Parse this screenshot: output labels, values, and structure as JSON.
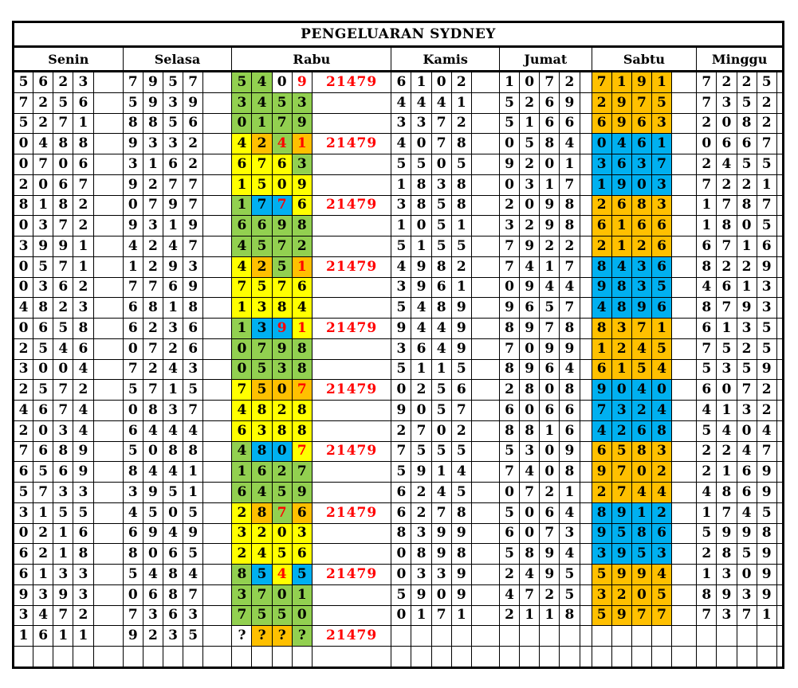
{
  "title": "PENGELUARAN SYDNEY",
  "days": [
    "Senin",
    "Selasa",
    "Rabu",
    "Kamis",
    "Jumat",
    "Sabtu",
    "Minggu"
  ],
  "colors": {
    "green": "#92D050",
    "yellow": "#FFFF00",
    "orange": "#FFC000",
    "blue": "#00B0F0",
    "white": "#FFFFFF",
    "red": "#FF0000",
    "black": "#000000"
  },
  "rows": [
    {
      "senin": "5623",
      "selasa": "7957",
      "rabu": {
        "digits": [
          "5",
          "4",
          "0",
          "9"
        ],
        "bg": [
          "green",
          "green",
          "white",
          "white"
        ],
        "red": [
          false,
          false,
          false,
          true
        ]
      },
      "result": "21479",
      "kamis": "6102",
      "jumat": "1072",
      "sabtu": "7191",
      "sabtu_bg": "orange",
      "minggu": "7225"
    },
    {
      "senin": "7256",
      "selasa": "5939",
      "rabu": {
        "digits": [
          "3",
          "4",
          "5",
          "3"
        ],
        "bg": [
          "green",
          "green",
          "green",
          "green"
        ],
        "red": [
          false,
          false,
          false,
          false
        ]
      },
      "result": "",
      "kamis": "4441",
      "jumat": "5269",
      "sabtu": "2975",
      "sabtu_bg": "orange",
      "minggu": "7352"
    },
    {
      "senin": "5271",
      "selasa": "8856",
      "rabu": {
        "digits": [
          "0",
          "1",
          "7",
          "9"
        ],
        "bg": [
          "green",
          "green",
          "green",
          "green"
        ],
        "red": [
          false,
          false,
          false,
          false
        ]
      },
      "result": "",
      "kamis": "3372",
      "jumat": "5166",
      "sabtu": "6963",
      "sabtu_bg": "orange",
      "minggu": "2082"
    },
    {
      "senin": "0488",
      "selasa": "9332",
      "rabu": {
        "digits": [
          "4",
          "2",
          "4",
          "1"
        ],
        "bg": [
          "yellow",
          "orange",
          "green",
          "orange"
        ],
        "red": [
          false,
          false,
          true,
          true
        ]
      },
      "result": "21479",
      "kamis": "4078",
      "jumat": "0584",
      "sabtu": "0461",
      "sabtu_bg": "blue",
      "minggu": "0667"
    },
    {
      "senin": "0706",
      "selasa": "3162",
      "rabu": {
        "digits": [
          "6",
          "7",
          "6",
          "3"
        ],
        "bg": [
          "yellow",
          "yellow",
          "yellow",
          "green"
        ],
        "red": [
          false,
          false,
          false,
          false
        ]
      },
      "result": "",
      "kamis": "5505",
      "jumat": "9201",
      "sabtu": "3637",
      "sabtu_bg": "blue",
      "minggu": "2455"
    },
    {
      "senin": "2067",
      "selasa": "9277",
      "rabu": {
        "digits": [
          "1",
          "5",
          "0",
          "9"
        ],
        "bg": [
          "yellow",
          "yellow",
          "yellow",
          "yellow"
        ],
        "red": [
          false,
          false,
          false,
          false
        ]
      },
      "result": "",
      "kamis": "1838",
      "jumat": "0317",
      "sabtu": "1903",
      "sabtu_bg": "blue",
      "minggu": "7221"
    },
    {
      "senin": "8182",
      "selasa": "0797",
      "rabu": {
        "digits": [
          "1",
          "7",
          "7",
          "6"
        ],
        "bg": [
          "green",
          "blue",
          "blue",
          "yellow"
        ],
        "red": [
          false,
          false,
          true,
          false
        ]
      },
      "result": "21479",
      "kamis": "3858",
      "jumat": "2098",
      "sabtu": "2683",
      "sabtu_bg": "orange",
      "minggu": "1787"
    },
    {
      "senin": "0372",
      "selasa": "9319",
      "rabu": {
        "digits": [
          "6",
          "6",
          "9",
          "8"
        ],
        "bg": [
          "green",
          "green",
          "green",
          "green"
        ],
        "red": [
          false,
          false,
          false,
          false
        ]
      },
      "result": "",
      "kamis": "1051",
      "jumat": "3298",
      "sabtu": "6166",
      "sabtu_bg": "orange",
      "minggu": "1805"
    },
    {
      "senin": "3991",
      "selasa": "4247",
      "rabu": {
        "digits": [
          "4",
          "5",
          "7",
          "2"
        ],
        "bg": [
          "green",
          "green",
          "green",
          "green"
        ],
        "red": [
          false,
          false,
          false,
          false
        ]
      },
      "result": "",
      "kamis": "5155",
      "jumat": "7922",
      "sabtu": "2126",
      "sabtu_bg": "orange",
      "minggu": "6716"
    },
    {
      "senin": "0571",
      "selasa": "1293",
      "rabu": {
        "digits": [
          "4",
          "2",
          "5",
          "1"
        ],
        "bg": [
          "yellow",
          "orange",
          "green",
          "orange"
        ],
        "red": [
          false,
          false,
          false,
          true
        ]
      },
      "result": "21479",
      "kamis": "4982",
      "jumat": "7417",
      "sabtu": "8436",
      "sabtu_bg": "blue",
      "minggu": "8229"
    },
    {
      "senin": "0362",
      "selasa": "7769",
      "rabu": {
        "digits": [
          "7",
          "5",
          "7",
          "6"
        ],
        "bg": [
          "yellow",
          "yellow",
          "yellow",
          "yellow"
        ],
        "red": [
          false,
          false,
          false,
          false
        ]
      },
      "result": "",
      "kamis": "3961",
      "jumat": "0944",
      "sabtu": "9835",
      "sabtu_bg": "blue",
      "minggu": "4613"
    },
    {
      "senin": "4823",
      "selasa": "6818",
      "rabu": {
        "digits": [
          "1",
          "3",
          "8",
          "4"
        ],
        "bg": [
          "yellow",
          "yellow",
          "yellow",
          "yellow"
        ],
        "red": [
          false,
          false,
          false,
          false
        ]
      },
      "result": "",
      "kamis": "5489",
      "jumat": "9657",
      "sabtu": "4896",
      "sabtu_bg": "blue",
      "minggu": "8793"
    },
    {
      "senin": "0658",
      "selasa": "6236",
      "rabu": {
        "digits": [
          "1",
          "3",
          "9",
          "1"
        ],
        "bg": [
          "green",
          "blue",
          "blue",
          "yellow"
        ],
        "red": [
          false,
          false,
          true,
          true
        ]
      },
      "result": "21479",
      "kamis": "9449",
      "jumat": "8978",
      "sabtu": "8371",
      "sabtu_bg": "orange",
      "minggu": "6135"
    },
    {
      "senin": "2546",
      "selasa": "0726",
      "rabu": {
        "digits": [
          "0",
          "7",
          "9",
          "8"
        ],
        "bg": [
          "green",
          "green",
          "green",
          "green"
        ],
        "red": [
          false,
          false,
          false,
          false
        ]
      },
      "result": "",
      "kamis": "3649",
      "jumat": "7099",
      "sabtu": "1245",
      "sabtu_bg": "orange",
      "minggu": "7525"
    },
    {
      "senin": "3004",
      "selasa": "7243",
      "rabu": {
        "digits": [
          "0",
          "5",
          "3",
          "8"
        ],
        "bg": [
          "green",
          "green",
          "green",
          "green"
        ],
        "red": [
          false,
          false,
          false,
          false
        ]
      },
      "result": "",
      "kamis": "5115",
      "jumat": "8964",
      "sabtu": "6154",
      "sabtu_bg": "orange",
      "minggu": "5359"
    },
    {
      "senin": "2572",
      "selasa": "5715",
      "rabu": {
        "digits": [
          "7",
          "5",
          "0",
          "7"
        ],
        "bg": [
          "yellow",
          "orange",
          "orange",
          "orange"
        ],
        "red": [
          false,
          false,
          false,
          true
        ]
      },
      "result": "21479",
      "kamis": "0256",
      "jumat": "2808",
      "sabtu": "9040",
      "sabtu_bg": "blue",
      "minggu": "6072"
    },
    {
      "senin": "4674",
      "selasa": "0837",
      "rabu": {
        "digits": [
          "4",
          "8",
          "2",
          "8"
        ],
        "bg": [
          "yellow",
          "yellow",
          "yellow",
          "yellow"
        ],
        "red": [
          false,
          false,
          false,
          false
        ]
      },
      "result": "",
      "kamis": "9057",
      "jumat": "6066",
      "sabtu": "7324",
      "sabtu_bg": "blue",
      "minggu": "4132"
    },
    {
      "senin": "2034",
      "selasa": "6444",
      "rabu": {
        "digits": [
          "6",
          "3",
          "8",
          "8"
        ],
        "bg": [
          "yellow",
          "yellow",
          "yellow",
          "yellow"
        ],
        "red": [
          false,
          false,
          false,
          false
        ]
      },
      "result": "",
      "kamis": "2702",
      "jumat": "8816",
      "sabtu": "4268",
      "sabtu_bg": "blue",
      "minggu": "5404"
    },
    {
      "senin": "7689",
      "selasa": "5088",
      "rabu": {
        "digits": [
          "4",
          "8",
          "0",
          "7"
        ],
        "bg": [
          "green",
          "blue",
          "blue",
          "yellow"
        ],
        "red": [
          false,
          false,
          false,
          true
        ]
      },
      "result": "21479",
      "kamis": "7555",
      "jumat": "5309",
      "sabtu": "6583",
      "sabtu_bg": "orange",
      "minggu": "2247"
    },
    {
      "senin": "6569",
      "selasa": "8441",
      "rabu": {
        "digits": [
          "1",
          "6",
          "2",
          "7"
        ],
        "bg": [
          "green",
          "green",
          "green",
          "green"
        ],
        "red": [
          false,
          false,
          false,
          false
        ]
      },
      "result": "",
      "kamis": "5914",
      "jumat": "7408",
      "sabtu": "9702",
      "sabtu_bg": "orange",
      "minggu": "2169"
    },
    {
      "senin": "5733",
      "selasa": "3951",
      "rabu": {
        "digits": [
          "6",
          "4",
          "5",
          "9"
        ],
        "bg": [
          "green",
          "green",
          "green",
          "green"
        ],
        "red": [
          false,
          false,
          false,
          false
        ]
      },
      "result": "",
      "kamis": "6245",
      "jumat": "0721",
      "sabtu": "2744",
      "sabtu_bg": "orange",
      "minggu": "4869"
    },
    {
      "senin": "3155",
      "selasa": "4505",
      "rabu": {
        "digits": [
          "2",
          "8",
          "7",
          "6"
        ],
        "bg": [
          "yellow",
          "orange",
          "green",
          "orange"
        ],
        "red": [
          false,
          false,
          true,
          false
        ]
      },
      "result": "21479",
      "kamis": "6278",
      "jumat": "5064",
      "sabtu": "8912",
      "sabtu_bg": "blue",
      "minggu": "1745"
    },
    {
      "senin": "0216",
      "selasa": "6949",
      "rabu": {
        "digits": [
          "3",
          "2",
          "0",
          "3"
        ],
        "bg": [
          "yellow",
          "yellow",
          "yellow",
          "yellow"
        ],
        "red": [
          false,
          false,
          false,
          false
        ]
      },
      "result": "",
      "kamis": "8399",
      "jumat": "6073",
      "sabtu": "9586",
      "sabtu_bg": "blue",
      "minggu": "5998"
    },
    {
      "senin": "6218",
      "selasa": "8065",
      "rabu": {
        "digits": [
          "2",
          "4",
          "5",
          "6"
        ],
        "bg": [
          "yellow",
          "yellow",
          "yellow",
          "yellow"
        ],
        "red": [
          false,
          false,
          false,
          false
        ]
      },
      "result": "",
      "kamis": "0898",
      "jumat": "5894",
      "sabtu": "3953",
      "sabtu_bg": "blue",
      "minggu": "2859"
    },
    {
      "senin": "6133",
      "selasa": "5484",
      "rabu": {
        "digits": [
          "8",
          "5",
          "4",
          "5"
        ],
        "bg": [
          "green",
          "blue",
          "yellow",
          "blue"
        ],
        "red": [
          false,
          false,
          true,
          false
        ]
      },
      "result": "21479",
      "kamis": "0339",
      "jumat": "2495",
      "sabtu": "5994",
      "sabtu_bg": "orange",
      "minggu": "1309"
    },
    {
      "senin": "9393",
      "selasa": "0687",
      "rabu": {
        "digits": [
          "3",
          "7",
          "0",
          "1"
        ],
        "bg": [
          "green",
          "green",
          "green",
          "green"
        ],
        "red": [
          false,
          false,
          false,
          false
        ]
      },
      "result": "",
      "kamis": "5909",
      "jumat": "4725",
      "sabtu": "3205",
      "sabtu_bg": "orange",
      "minggu": "8939"
    },
    {
      "senin": "3472",
      "selasa": "7363",
      "rabu": {
        "digits": [
          "7",
          "5",
          "5",
          "0"
        ],
        "bg": [
          "green",
          "green",
          "green",
          "green"
        ],
        "red": [
          false,
          false,
          false,
          false
        ]
      },
      "result": "",
      "kamis": "0171",
      "jumat": "2118",
      "sabtu": "5977",
      "sabtu_bg": "orange",
      "minggu": "7371"
    },
    {
      "senin": "1611",
      "selasa": "9235",
      "rabu": {
        "digits": [
          "?",
          "?",
          "?",
          "?"
        ],
        "bg": [
          "white",
          "orange",
          "orange",
          "green"
        ],
        "red": [
          false,
          false,
          false,
          false
        ]
      },
      "result": "21479",
      "kamis": "",
      "jumat": "",
      "sabtu": "",
      "sabtu_bg": null,
      "minggu": ""
    },
    {
      "senin": "",
      "selasa": "",
      "rabu": null,
      "result": "",
      "kamis": "",
      "jumat": "",
      "sabtu": "",
      "sabtu_bg": null,
      "minggu": ""
    }
  ]
}
